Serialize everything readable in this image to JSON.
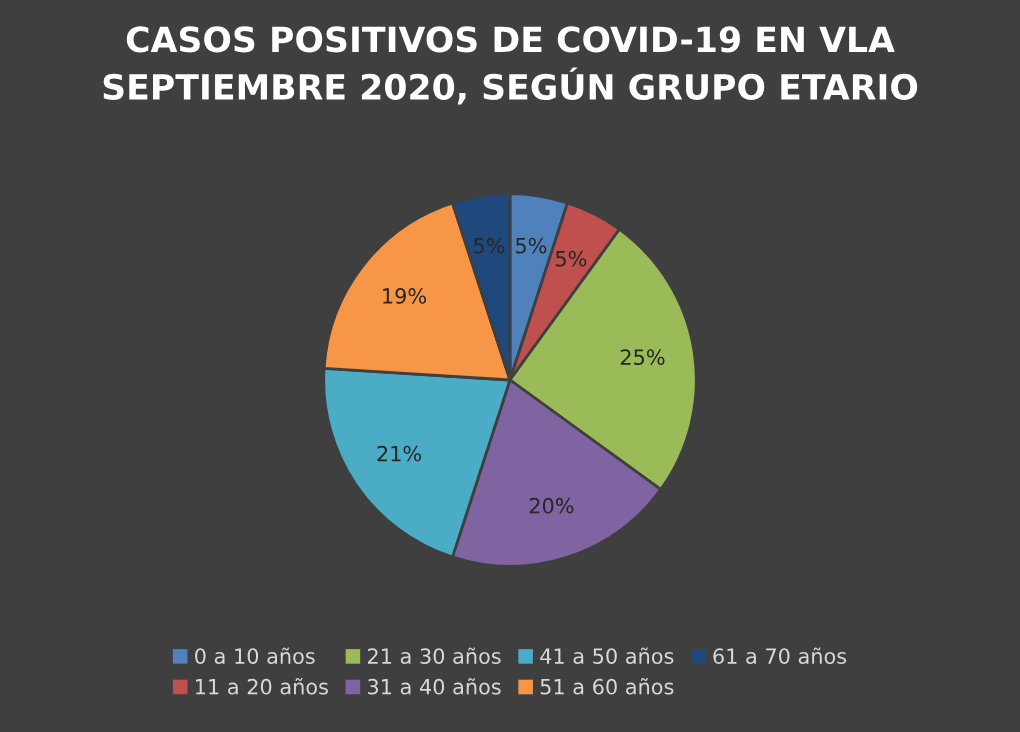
{
  "chart_data": {
    "type": "pie",
    "title": "CASOS POSITIVOS DE COVID-19 EN VLA\nSEPTIEMBRE 2020, SEGÚN GRUPO ETARIO",
    "categories": [
      "0 a 10 años",
      "11 a 20 años",
      "21 a 30 años",
      "31 a 40 años",
      "41 a 50 años",
      "51 a 60 años",
      "61 a 70 años"
    ],
    "values": [
      5,
      5,
      25,
      20,
      21,
      19,
      5
    ],
    "value_labels": [
      "5%",
      "5%",
      "25%",
      "20%",
      "21%",
      "19%",
      "5%"
    ],
    "colors": [
      "#4f81bd",
      "#c0504d",
      "#9bbb59",
      "#8064a2",
      "#4bacc6",
      "#f79646",
      "#1f497d"
    ],
    "legend": "bottom"
  }
}
